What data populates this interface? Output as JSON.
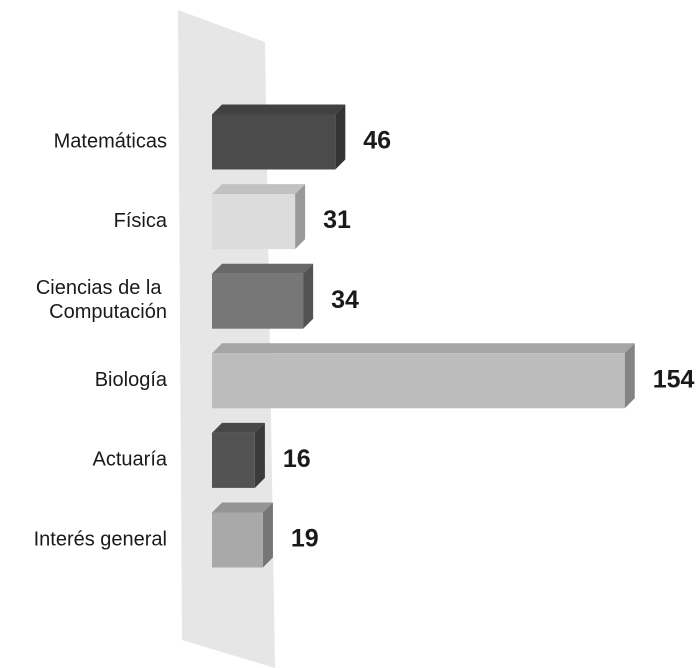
{
  "chart_data": {
    "type": "bar3d",
    "categories": [
      "Matemáticas",
      "Física",
      "Ciencias de la Computación",
      "Biología",
      "Actuaría",
      "Interés general"
    ],
    "values": [
      46,
      31,
      34,
      154,
      16,
      19
    ],
    "colors": [
      "#4b4b4b",
      "#dcdcdc",
      "#777777",
      "#bcbcbc",
      "#535353",
      "#a9a9a9"
    ]
  }
}
